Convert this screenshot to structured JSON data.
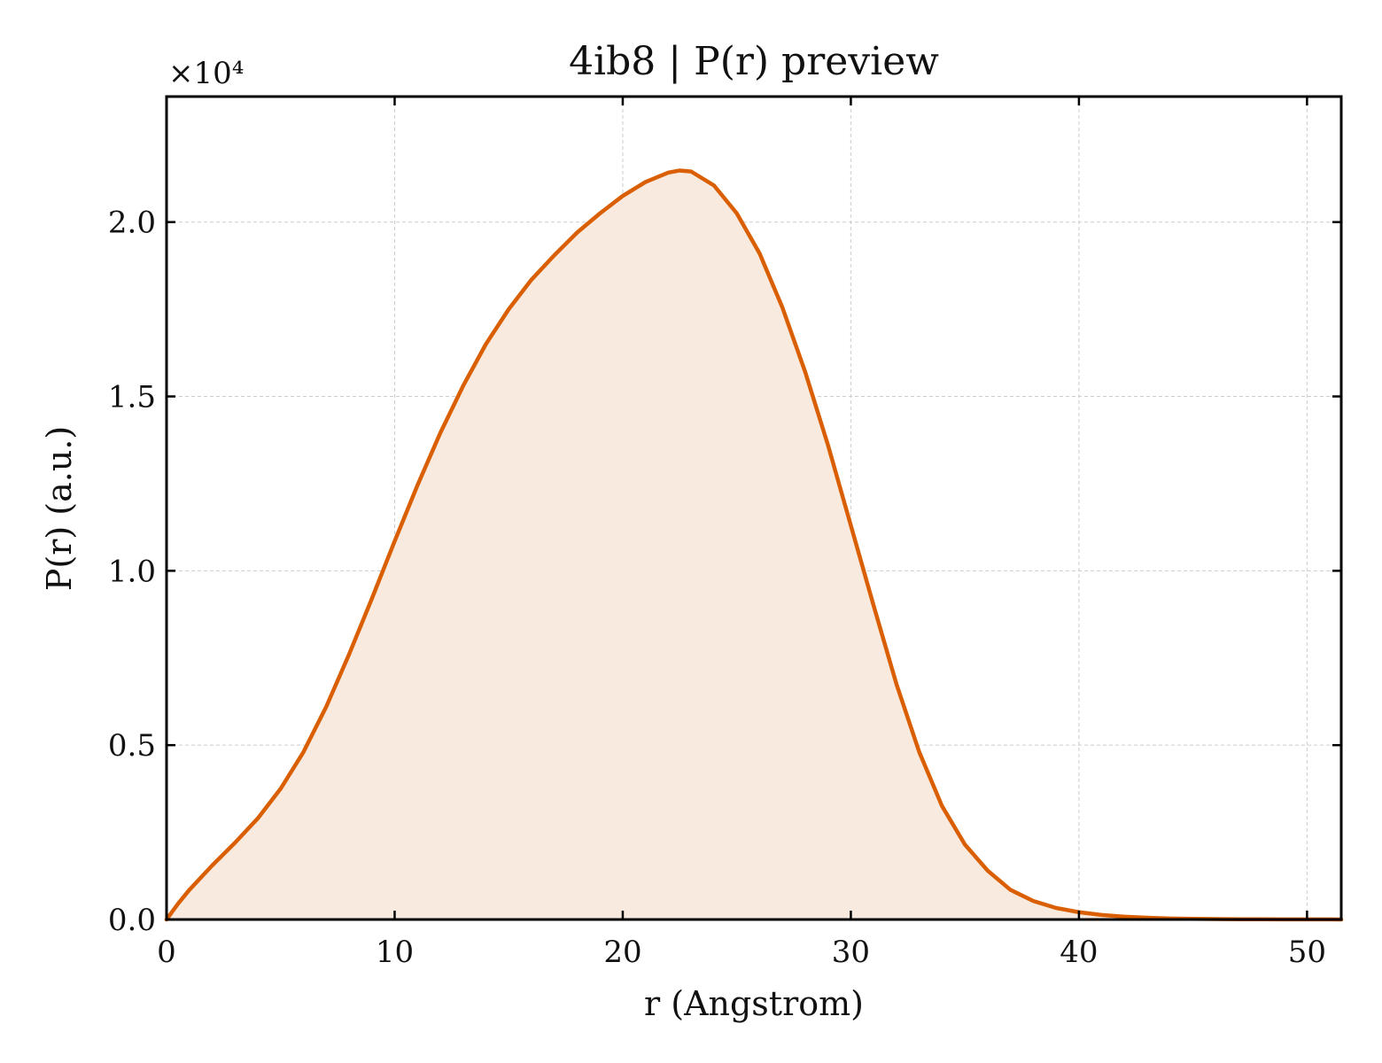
{
  "chart_data": {
    "type": "area",
    "title": "4ib8 | P(r) preview",
    "xlabel": "r (Angstrom)",
    "ylabel": "P(r) (a.u.)",
    "y_offset_label": "×10⁴",
    "y_scale_factor": 10000,
    "xlim": [
      0,
      51.5
    ],
    "ylim": [
      0,
      23600
    ],
    "x_ticks": [
      0,
      10,
      20,
      30,
      40,
      50
    ],
    "x_tick_labels": [
      "0",
      "10",
      "20",
      "30",
      "40",
      "50"
    ],
    "y_ticks": [
      0,
      5000,
      10000,
      15000,
      20000
    ],
    "y_tick_labels": [
      "0.0",
      "0.5",
      "1.0",
      "1.5",
      "2.0"
    ],
    "grid": true,
    "line_color": "#d95f02",
    "fill_color": "#f9eadf",
    "series": [
      {
        "x": [
          0,
          0.5,
          1,
          2,
          3,
          4,
          5,
          6,
          7,
          8,
          9,
          10,
          11,
          12,
          13,
          14,
          15,
          16,
          17,
          18,
          19,
          20,
          21,
          22,
          22.5,
          23,
          24,
          25,
          26,
          27,
          28,
          29,
          30,
          31,
          32,
          33,
          34,
          35,
          36,
          37,
          38,
          39,
          40,
          41,
          42,
          43,
          44,
          45,
          46,
          47,
          48,
          49,
          50,
          51,
          51.5
        ],
        "y": [
          0,
          450,
          850,
          1550,
          2200,
          2900,
          3750,
          4800,
          6100,
          7600,
          9200,
          10850,
          12450,
          13950,
          15300,
          16500,
          17500,
          18350,
          19050,
          19700,
          20250,
          20750,
          21150,
          21420,
          21480,
          21450,
          21050,
          20250,
          19100,
          17550,
          15700,
          13600,
          11300,
          9000,
          6750,
          4800,
          3250,
          2150,
          1400,
          850,
          530,
          330,
          210,
          130,
          80,
          50,
          30,
          20,
          12,
          8,
          5,
          3,
          2,
          3,
          0
        ]
      }
    ]
  }
}
